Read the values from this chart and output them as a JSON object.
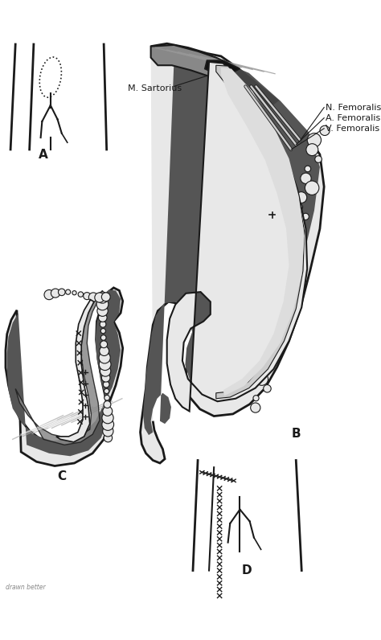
{
  "bg_color": "#ffffff",
  "line_color": "#1a1a1a",
  "dark_gray": "#555555",
  "med_gray": "#888888",
  "light_gray": "#cccccc",
  "very_light_gray": "#e8e8e8",
  "near_white": "#f0f0f0",
  "labels": {
    "N_Femoralis": "N. Femoralis",
    "A_Femoralis": "A. Femoralis",
    "V_Femoralis": "V. Femoralis",
    "M_Sartorius": "M. Sartorius",
    "A": "A",
    "B": "B",
    "C": "C",
    "D": "D"
  },
  "label_fontsize": 8,
  "panel_label_fontsize": 11,
  "watermark": "drawn better"
}
